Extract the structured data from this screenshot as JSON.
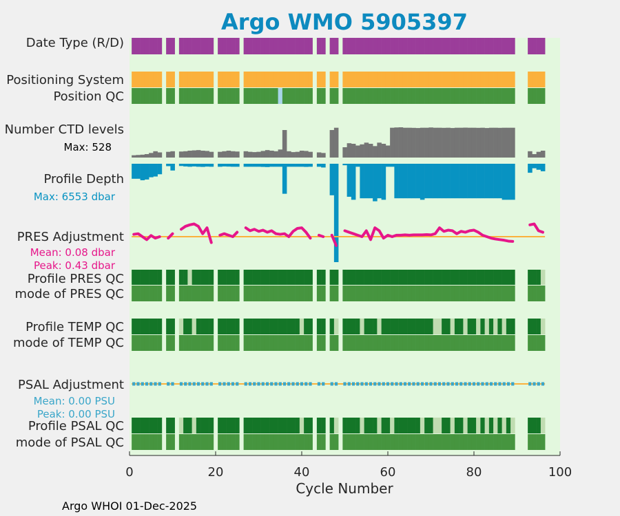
{
  "colors": {
    "title": "#0d8abf",
    "background": "#f0f0f0",
    "plot_bg": "#e3f8de",
    "date_type": "#9b3d9a",
    "positioning": "#fbb13c",
    "qc_good": "#46953f",
    "qc_dark": "#147628",
    "qc_light": "#c0dcb1",
    "qc_flag_blue": "#a8d5ea",
    "ctd_levels": "#757575",
    "profile_depth": "#0893c2",
    "pres_adj": "#e6168a",
    "zero_line": "#fbb13c",
    "psal_adj": "#3aa6c9"
  },
  "chart_data": {
    "type": "timeline",
    "title": "Argo WMO 5905397",
    "xlabel": "Cycle Number",
    "xlim": [
      0,
      100
    ],
    "xticks": [
      0,
      20,
      40,
      60,
      80,
      100
    ],
    "footer": "Argo WHOI 01-Dec-2025",
    "missing_cycles": [
      8,
      11,
      20,
      26,
      43,
      46,
      49,
      90,
      91,
      92
    ],
    "cycles_with_data": "1-96",
    "labels": {
      "date_type": "Date Type (R/D)",
      "positioning": "Positioning System",
      "position_qc": "Position QC",
      "ctd_levels": "Number CTD levels",
      "ctd_max": "Max: 528",
      "profile_depth": "Profile Depth",
      "depth_max": "Max: 6553 dbar",
      "pres_adj": "PRES Adjustment",
      "pres_mean": "Mean: 0.08 dbar",
      "pres_peak": "Peak: 0.43 dbar",
      "profile_pres_qc": "Profile PRES QC",
      "mode_pres_qc": "mode of PRES QC",
      "profile_temp_qc": "Profile TEMP QC",
      "mode_temp_qc": "mode of TEMP QC",
      "psal_adj": "PSAL Adjustment",
      "psal_mean": "Mean: 0.00 PSU",
      "psal_peak": "Peak: 0.00 PSU",
      "profile_psal_qc": "Profile PSAL QC",
      "mode_psal_qc": "mode of PSAL QC"
    },
    "position_qc_flagged_cycles": [
      35
    ],
    "ctd_max_levels": 528,
    "ctd_levels": [
      40,
      45,
      50,
      60,
      80,
      110,
      90,
      null,
      100,
      110,
      null,
      105,
      110,
      120,
      125,
      130,
      120,
      115,
      100,
      null,
      100,
      110,
      120,
      110,
      105,
      null,
      110,
      100,
      95,
      100,
      115,
      130,
      120,
      110,
      140,
      480,
      110,
      95,
      100,
      120,
      115,
      100,
      null,
      90,
      80,
      null,
      480,
      520,
      null,
      180,
      250,
      240,
      210,
      230,
      260,
      240,
      200,
      260,
      240,
      210,
      520,
      525,
      528,
      520,
      520,
      518,
      515,
      520,
      520,
      525,
      520,
      520,
      518,
      520,
      515,
      520,
      520,
      522,
      520,
      520,
      518,
      520,
      515,
      520,
      520,
      518,
      520,
      520,
      520,
      null,
      null,
      null,
      110,
      60,
      100,
      120
    ],
    "depth_max_dbar": 6553,
    "profile_depth": [
      1000,
      1000,
      1100,
      1050,
      900,
      850,
      700,
      null,
      160,
      450,
      null,
      150,
      180,
      200,
      180,
      200,
      210,
      190,
      200,
      null,
      200,
      180,
      190,
      200,
      200,
      null,
      200,
      200,
      200,
      200,
      210,
      220,
      200,
      200,
      200,
      2000,
      200,
      200,
      200,
      200,
      210,
      200,
      null,
      200,
      250,
      null,
      2100,
      6553,
      null,
      100,
      2200,
      2400,
      200,
      2300,
      2300,
      2300,
      2500,
      2300,
      2400,
      200,
      200,
      2300,
      2300,
      2300,
      2300,
      2300,
      2300,
      2400,
      2300,
      2300,
      2300,
      2300,
      2300,
      2300,
      2300,
      2300,
      2300,
      2300,
      2300,
      2300,
      2300,
      2300,
      2300,
      2300,
      2300,
      2300,
      2400,
      2400,
      2400,
      null,
      null,
      null,
      600,
      300,
      400,
      500
    ],
    "pres_adj_ylim": [
      -0.5,
      0.5
    ],
    "pres_adj_mean": 0.08,
    "pres_adj_peak": 0.43,
    "pres_adjustment": [
      0.08,
      0.1,
      0.0,
      -0.1,
      0.04,
      -0.05,
      0.0,
      null,
      -0.05,
      0.1,
      null,
      0.25,
      0.35,
      0.4,
      0.43,
      0.35,
      0.1,
      0.3,
      -0.2,
      null,
      0.05,
      0.1,
      0.05,
      0.0,
      0.15,
      null,
      0.3,
      0.2,
      0.25,
      0.18,
      0.22,
      0.15,
      0.2,
      0.1,
      0.08,
      0.1,
      0.0,
      0.18,
      0.28,
      0.3,
      0.15,
      -0.05,
      null,
      0.05,
      0.0,
      null,
      0.05,
      -0.3,
      null,
      0.2,
      0.15,
      0.1,
      0.05,
      0.0,
      0.2,
      -0.1,
      0.3,
      0.2,
      -0.05,
      0.05,
      0.0,
      0.05,
      0.05,
      0.06,
      0.05,
      0.06,
      0.06,
      0.06,
      0.07,
      0.06,
      0.1,
      0.3,
      0.18,
      0.22,
      0.2,
      0.1,
      0.18,
      0.15,
      0.2,
      0.22,
      0.15,
      0.05,
      0.0,
      -0.05,
      -0.08,
      -0.1,
      -0.12,
      -0.15,
      -0.16,
      null,
      null,
      null,
      0.4,
      0.43,
      0.2,
      0.15
    ],
    "psal_adj_mean": 0.0,
    "psal_adj_peak": 0.0,
    "pres_qc_profile_light_cycles": [
      14,
      96
    ],
    "temp_qc_profile_light_cycles": [
      12,
      15,
      40,
      48,
      54,
      58,
      71,
      72,
      75,
      78,
      81,
      83,
      85,
      87,
      96
    ],
    "psal_qc_profile_light_cycles": [
      12,
      15,
      40,
      48,
      54,
      58,
      61,
      68,
      71,
      72,
      75,
      78,
      81,
      83,
      85,
      87,
      89,
      96
    ],
    "mode_qc": "all good (1)"
  }
}
